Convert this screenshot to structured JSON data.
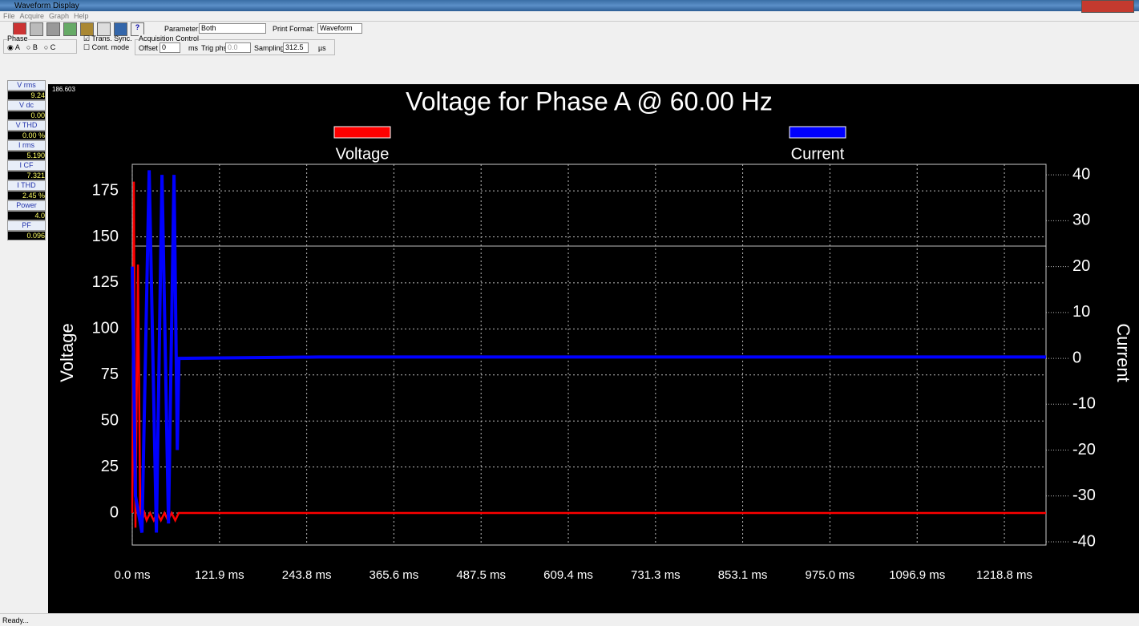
{
  "window": {
    "title": "Waveform Display"
  },
  "menu": [
    "File",
    "Acquire",
    "Graph",
    "Help"
  ],
  "toolbar": {
    "parameter_label": "Parameter:",
    "parameter": "Both",
    "print_label": "Print Format:",
    "print_format": "Waveform",
    "phase_label": "Phase",
    "phases": [
      "A",
      "B",
      "C"
    ],
    "trans_sync": "Trans. Sync.",
    "cont_mode": "Cont. mode",
    "acq_label": "Acquisition Control",
    "offset_label": "Offset",
    "offset": "0",
    "offset_unit": "ms",
    "trig_label": "Trig phs",
    "trig": "0.0",
    "sampling_label": "Sampling:",
    "sampling": "312.5",
    "sampling_unit": "µs"
  },
  "readings": [
    {
      "label": "V rms",
      "value": "9.24"
    },
    {
      "label": "V dc",
      "value": "0.00"
    },
    {
      "label": "V THD",
      "value": "0.00 %"
    },
    {
      "label": "I rms",
      "value": "5.190"
    },
    {
      "label": "I CF",
      "value": "7.321"
    },
    {
      "label": "I THD",
      "value": "2.45 %"
    },
    {
      "label": "Power",
      "value": "4.0"
    },
    {
      "label": "PF",
      "value": "0.096"
    }
  ],
  "status": "Ready...",
  "chart_data": {
    "type": "line",
    "title": "Voltage for Phase A @ 60.00 Hz",
    "corner_label": "186.603",
    "legend": "top",
    "grid": true,
    "y_label": "Voltage",
    "y2_label": "Current",
    "xlim": [
      0,
      1277
    ],
    "xticks": [
      {
        "value": 0,
        "label": "0.0 ms"
      },
      {
        "value": 121.9,
        "label": "121.9 ms"
      },
      {
        "value": 243.8,
        "label": "243.8 ms"
      },
      {
        "value": 365.6,
        "label": "365.6 ms"
      },
      {
        "value": 487.5,
        "label": "487.5 ms"
      },
      {
        "value": 609.4,
        "label": "609.4 ms"
      },
      {
        "value": 731.3,
        "label": "731.3 ms"
      },
      {
        "value": 853.1,
        "label": "853.1 ms"
      },
      {
        "value": 975.0,
        "label": "975.0 ms"
      },
      {
        "value": 1096.9,
        "label": "1096.9 ms"
      },
      {
        "value": 1218.8,
        "label": "1218.8 ms"
      }
    ],
    "ylim": [
      -17.4,
      189.4
    ],
    "yticks": [
      0,
      25,
      50,
      75,
      100,
      125,
      150,
      175
    ],
    "y2lim": [
      -40.7,
      42.3
    ],
    "y2ticks": [
      -40,
      -30,
      -20,
      -10,
      0,
      10,
      20,
      30,
      40
    ],
    "series": [
      {
        "name": "Voltage",
        "color": "#ff0000",
        "x": [
          0,
          2.2,
          4.5,
          7.9,
          11.2,
          14,
          17,
          20,
          25,
          30,
          35,
          40,
          45,
          50,
          55,
          60,
          65,
          400,
          800,
          1277
        ],
        "values": [
          0,
          180,
          -8,
          135,
          0,
          -4,
          0,
          -4,
          0,
          -4,
          0,
          -4,
          0,
          -4,
          0,
          -4,
          0,
          0,
          0,
          0
        ]
      },
      {
        "name": "Current",
        "color": "#0000ff",
        "axis": "y2",
        "x": [
          0,
          4.5,
          13.5,
          23.6,
          33.7,
          41.6,
          50.6,
          58.4,
          62.9,
          65.2,
          260.7,
          1277
        ],
        "values": [
          20,
          -30,
          -38,
          41,
          -38,
          40,
          -36,
          40,
          -20,
          0,
          0.3,
          0.3
        ]
      }
    ]
  }
}
